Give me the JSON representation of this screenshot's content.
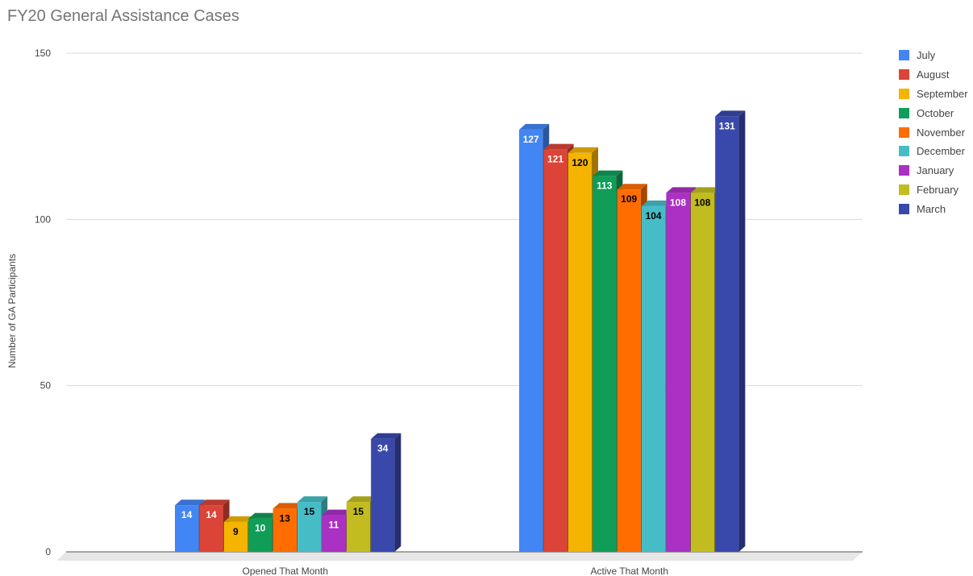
{
  "chart_data": {
    "type": "bar",
    "title": "FY20 General Assistance Cases",
    "xlabel": "",
    "ylabel": "Number of GA Participants",
    "ylim": [
      0,
      150
    ],
    "yticks": [
      0,
      50,
      100,
      150
    ],
    "grid": true,
    "legend_position": "right",
    "style": "3d",
    "categories": [
      "Opened That Month",
      "Active That Month"
    ],
    "series": [
      {
        "name": "July",
        "color": "#4285F4",
        "values": [
          14,
          127
        ]
      },
      {
        "name": "August",
        "color": "#DB4437",
        "values": [
          14,
          121
        ]
      },
      {
        "name": "September",
        "color": "#F4B400",
        "values": [
          9,
          120
        ]
      },
      {
        "name": "October",
        "color": "#0F9D58",
        "values": [
          10,
          113
        ]
      },
      {
        "name": "November",
        "color": "#FF6D01",
        "values": [
          13,
          109
        ]
      },
      {
        "name": "December",
        "color": "#46BDC6",
        "values": [
          15,
          104
        ]
      },
      {
        "name": "January",
        "color": "#AB30C4",
        "values": [
          11,
          108
        ]
      },
      {
        "name": "February",
        "color": "#C2BC21",
        "values": [
          15,
          108
        ]
      },
      {
        "name": "March",
        "color": "#3949AB",
        "values": [
          34,
          131
        ]
      }
    ],
    "label_colors": [
      "#ffffff",
      "#ffffff",
      "#000000",
      "#ffffff",
      "#000000",
      "#000000",
      "#ffffff",
      "#000000",
      "#ffffff"
    ]
  }
}
